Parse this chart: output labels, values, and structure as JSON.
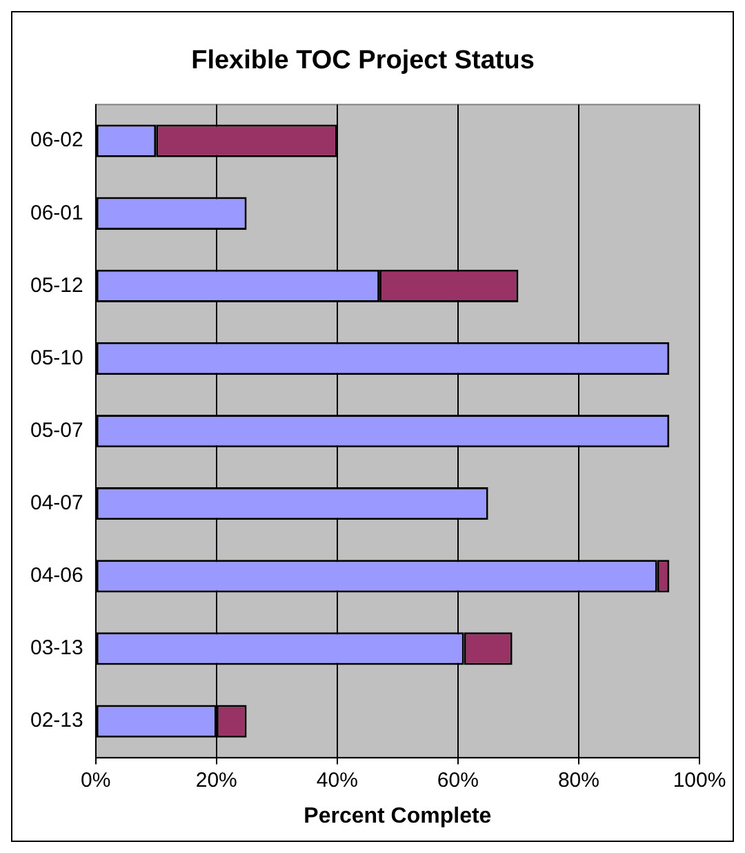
{
  "chart_data": {
    "type": "bar",
    "orientation": "horizontal",
    "stacked": true,
    "title": "Flexible TOC Project Status",
    "xlabel": "Percent Complete",
    "categories": [
      "06-02",
      "06-01",
      "05-12",
      "05-10",
      "05-07",
      "04-07",
      "04-06",
      "03-13",
      "02-13"
    ],
    "series": [
      {
        "color": "#9999ff",
        "values": [
          10,
          25,
          47,
          95,
          95,
          65,
          93,
          61,
          20
        ]
      },
      {
        "color": "#993366",
        "values": [
          30,
          null,
          23,
          null,
          null,
          null,
          2,
          8,
          5
        ]
      }
    ],
    "xlim": [
      0,
      100
    ],
    "xticks": [
      {
        "value": 0,
        "label": "0%"
      },
      {
        "value": 20,
        "label": "20%"
      },
      {
        "value": 40,
        "label": "40%"
      },
      {
        "value": 60,
        "label": "60%"
      },
      {
        "value": 80,
        "label": "80%"
      },
      {
        "value": 100,
        "label": "100%"
      }
    ],
    "grid": "x",
    "legend": false
  }
}
